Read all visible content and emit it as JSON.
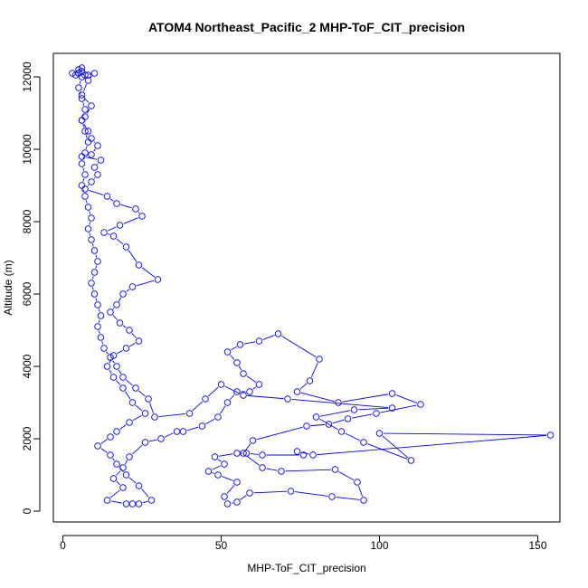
{
  "chart_data": {
    "type": "scatter",
    "title": "ATOM4 Northeast_Pacific_2 MHP-ToF_CIT_precision",
    "xlabel": "MHP-ToF_CIT_precision",
    "ylabel": "Altitude (m)",
    "xlim": [
      -3,
      157
    ],
    "ylim": [
      -300,
      12650
    ],
    "x_ticks": [
      0,
      50,
      100,
      150
    ],
    "x_tick_labels": [
      "0",
      "50",
      "100",
      "150"
    ],
    "y_ticks": [
      0,
      2000,
      4000,
      6000,
      8000,
      10000,
      12000
    ],
    "y_tick_labels": [
      "0",
      "2000",
      "4000",
      "6000",
      "8000",
      "10000",
      "12000"
    ],
    "grid": false,
    "series": [
      {
        "color": "#0000ff",
        "marker": "open-circle",
        "line": true,
        "points": [
          [
            5,
            12100
          ],
          [
            6,
            12150
          ],
          [
            7,
            12050
          ],
          [
            10,
            12100
          ],
          [
            8,
            11900
          ],
          [
            6,
            11500
          ],
          [
            9,
            11200
          ],
          [
            7,
            10900
          ],
          [
            6,
            10800
          ],
          [
            8,
            10500
          ],
          [
            9,
            10300
          ],
          [
            11,
            10100
          ],
          [
            9,
            9850
          ],
          [
            6,
            9800
          ],
          [
            12,
            9700
          ],
          [
            10,
            9500
          ],
          [
            11,
            9300
          ],
          [
            9,
            9100
          ],
          [
            7,
            8900
          ],
          [
            14,
            8700
          ],
          [
            17,
            8500
          ],
          [
            23,
            8350
          ],
          [
            25,
            8150
          ],
          [
            18,
            7900
          ],
          [
            13,
            7700
          ],
          [
            16,
            7600
          ],
          [
            20,
            7300
          ],
          [
            24,
            6800
          ],
          [
            30,
            6400
          ],
          [
            22,
            6200
          ],
          [
            19,
            6000
          ],
          [
            17,
            5700
          ],
          [
            15,
            5500
          ],
          [
            18,
            5200
          ],
          [
            21,
            5000
          ],
          [
            24,
            4700
          ],
          [
            20,
            4500
          ],
          [
            16,
            4300
          ],
          [
            14,
            4000
          ],
          [
            16,
            3700
          ],
          [
            19,
            3400
          ],
          [
            22,
            3000
          ],
          [
            26,
            2700
          ],
          [
            21,
            2450
          ],
          [
            17,
            2200
          ],
          [
            15,
            2050
          ],
          [
            11,
            1800
          ],
          [
            15,
            1550
          ],
          [
            17,
            1300
          ],
          [
            20,
            1000
          ],
          [
            24,
            700
          ],
          [
            28,
            300
          ],
          [
            24,
            200
          ],
          [
            22,
            200
          ],
          [
            20,
            200
          ],
          [
            14,
            300
          ],
          [
            19,
            650
          ],
          [
            16,
            900
          ],
          [
            19,
            1200
          ],
          [
            21,
            1500
          ],
          [
            26,
            1900
          ],
          [
            31,
            2000
          ],
          [
            36,
            2200
          ],
          [
            38,
            2200
          ],
          [
            44,
            2350
          ],
          [
            49,
            2600
          ],
          [
            52,
            3000
          ],
          [
            55,
            3300
          ],
          [
            59,
            3300
          ],
          [
            62,
            3500
          ],
          [
            57,
            3800
          ],
          [
            55,
            4100
          ],
          [
            52,
            4400
          ],
          [
            56,
            4600
          ],
          [
            62,
            4700
          ],
          [
            68,
            4900
          ],
          [
            81,
            4200
          ],
          [
            78,
            3600
          ],
          [
            74,
            3300
          ],
          [
            87,
            3000
          ],
          [
            104,
            3250
          ],
          [
            113,
            2950
          ],
          [
            99,
            2700
          ],
          [
            90,
            2550
          ],
          [
            84,
            2400
          ],
          [
            77,
            2350
          ],
          [
            60,
            1950
          ],
          [
            57,
            1600
          ],
          [
            63,
            1200
          ],
          [
            69,
            1100
          ],
          [
            86,
            1150
          ],
          [
            93,
            800
          ],
          [
            95,
            300
          ],
          [
            85,
            400
          ],
          [
            72,
            550
          ],
          [
            59,
            500
          ],
          [
            55,
            250
          ],
          [
            52,
            200
          ],
          [
            51,
            400
          ],
          [
            55,
            800
          ],
          [
            49,
            1000
          ],
          [
            46,
            1100
          ],
          [
            51,
            1300
          ],
          [
            48,
            1500
          ],
          [
            55,
            1600
          ],
          [
            58,
            1600
          ],
          [
            63,
            1550
          ],
          [
            76,
            1550
          ],
          [
            74,
            1650
          ],
          [
            79,
            1550
          ],
          [
            154,
            2100
          ],
          [
            100,
            2150
          ],
          [
            110,
            1400
          ],
          [
            95,
            1900
          ],
          [
            88,
            2200
          ],
          [
            80,
            2600
          ],
          [
            92,
            2800
          ],
          [
            104,
            2850
          ],
          [
            71,
            3100
          ],
          [
            57,
            3200
          ],
          [
            50,
            3500
          ],
          [
            45,
            3100
          ],
          [
            40,
            2700
          ],
          [
            29,
            2600
          ],
          [
            27,
            3100
          ],
          [
            23,
            3400
          ],
          [
            19,
            3700
          ],
          [
            17,
            4000
          ],
          [
            15,
            4250
          ],
          [
            13,
            4500
          ],
          [
            12,
            4800
          ],
          [
            11,
            5100
          ],
          [
            12,
            5400
          ],
          [
            11,
            5700
          ],
          [
            10,
            6000
          ],
          [
            9,
            6300
          ],
          [
            10,
            6600
          ],
          [
            11,
            6900
          ],
          [
            10,
            7200
          ],
          [
            9,
            7500
          ],
          [
            8,
            7800
          ],
          [
            9,
            8100
          ],
          [
            8,
            8400
          ],
          [
            7,
            8700
          ],
          [
            6,
            9000
          ],
          [
            7,
            9300
          ],
          [
            6,
            9600
          ],
          [
            7,
            9900
          ],
          [
            8,
            10200
          ],
          [
            7,
            10500
          ],
          [
            6,
            10800
          ],
          [
            7,
            11100
          ],
          [
            6,
            11400
          ],
          [
            5,
            11700
          ],
          [
            6,
            12000
          ],
          [
            5,
            12200
          ],
          [
            4,
            12050
          ],
          [
            3,
            12100
          ],
          [
            6,
            12250
          ],
          [
            8,
            12050
          ]
        ]
      }
    ]
  }
}
